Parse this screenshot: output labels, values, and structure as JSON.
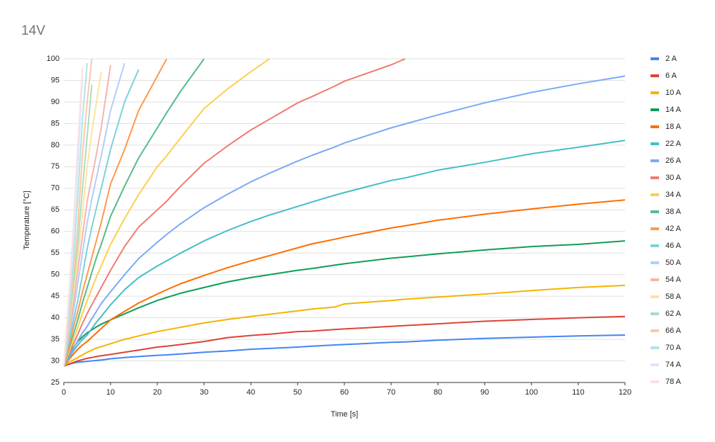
{
  "chart_data": {
    "type": "line",
    "title": "14V",
    "x_label": "Time [s]",
    "y_label": "Temperature [°C]",
    "x": [
      0,
      1,
      2,
      3,
      4,
      5,
      6,
      7,
      8,
      10,
      13,
      16,
      20,
      22,
      25,
      30,
      35,
      40,
      44,
      50,
      53,
      58,
      60,
      70,
      73,
      80,
      90,
      100,
      110,
      120
    ],
    "xlim": [
      0,
      120
    ],
    "xticks": [
      0,
      10,
      20,
      30,
      40,
      50,
      60,
      70,
      80,
      90,
      100,
      110,
      120
    ],
    "ylim": [
      25,
      100
    ],
    "yticks": [
      25,
      30,
      35,
      40,
      45,
      50,
      55,
      60,
      65,
      70,
      75,
      80,
      85,
      90,
      95,
      100
    ],
    "grid": true,
    "legend": "right",
    "series": [
      {
        "name": "2 A",
        "color": "#4285f4",
        "values": [
          28.8,
          29.2,
          29.5,
          29.7,
          29.8,
          29.9,
          30,
          30.1,
          30.2,
          30.5,
          30.8,
          31,
          31.3,
          31.4,
          31.6,
          32,
          32.3,
          32.7,
          32.9,
          33.2,
          33.4,
          33.7,
          33.8,
          34.3,
          34.4,
          34.8,
          35.2,
          35.5,
          35.8,
          36
        ]
      },
      {
        "name": "6 A",
        "color": "#db4437",
        "values": [
          28.8,
          29.2,
          29.6,
          30,
          30.3,
          30.6,
          30.8,
          31,
          31.2,
          31.5,
          32,
          32.5,
          33.2,
          33.4,
          33.8,
          34.5,
          35.4,
          35.9,
          36.2,
          36.8,
          36.9,
          37.3,
          37.4,
          38,
          38.2,
          38.6,
          39.2,
          39.6,
          40,
          40.3
        ]
      },
      {
        "name": "10 A",
        "color": "#f4b400",
        "values": [
          28.8,
          29.6,
          30.2,
          30.8,
          31.4,
          32,
          32.5,
          33,
          33.3,
          34,
          35,
          35.8,
          36.8,
          37.2,
          37.8,
          38.8,
          39.6,
          40.3,
          40.8,
          41.6,
          42,
          42.5,
          43.2,
          44,
          44.3,
          44.8,
          45.5,
          46.3,
          47,
          47.5
        ]
      },
      {
        "name": "14 A",
        "color": "#0f9d58",
        "values": [
          28.8,
          31,
          33,
          34.5,
          35.6,
          36.5,
          37.2,
          37.9,
          38.5,
          39.5,
          40.9,
          42.3,
          44,
          44.7,
          45.7,
          47,
          48.3,
          49.3,
          50,
          51,
          51.4,
          52.2,
          52.5,
          53.8,
          54.1,
          54.8,
          55.7,
          56.5,
          57,
          57.8
        ]
      },
      {
        "name": "18 A",
        "color": "#ff6d01",
        "values": [
          28.8,
          30.2,
          31.5,
          32.7,
          33.7,
          34.5,
          35.5,
          36.5,
          37.5,
          39.5,
          41.5,
          43.4,
          45.5,
          46.5,
          47.9,
          49.8,
          51.6,
          53.2,
          54.4,
          56.2,
          57.1,
          58.2,
          58.7,
          60.8,
          61.3,
          62.6,
          64,
          65.2,
          66.3,
          67.3
        ]
      },
      {
        "name": "22 A",
        "color": "#46bdc6",
        "values": [
          28.8,
          30.5,
          32.2,
          33.7,
          35,
          36,
          37.5,
          39,
          40.3,
          43,
          46.5,
          49.3,
          52,
          53.2,
          55,
          57.8,
          60.2,
          62.3,
          63.8,
          65.8,
          66.8,
          68.4,
          69,
          71.8,
          72.4,
          74.2,
          76,
          78,
          79.5,
          81.1
        ]
      },
      {
        "name": "26 A",
        "color": "#7baaf7",
        "values": [
          28.8,
          30.8,
          32.8,
          34.7,
          36.5,
          38,
          39.8,
          41.5,
          43.3,
          46,
          50,
          53.7,
          57.5,
          59.3,
          61.8,
          65.5,
          68.6,
          71.5,
          73.5,
          76.3,
          77.6,
          79.6,
          80.5,
          84,
          84.9,
          87,
          89.8,
          92.2,
          94.2,
          96
        ]
      },
      {
        "name": "30 A",
        "color": "#f07b72",
        "values": [
          28.8,
          31.3,
          33.8,
          36.2,
          38.7,
          41,
          43,
          45,
          47,
          51,
          56.5,
          61,
          65,
          67,
          70.5,
          75.8,
          79.8,
          83.5,
          86,
          89.8,
          91.2,
          93.7,
          94.8,
          98.6,
          100,
          null,
          null,
          null,
          null,
          null
        ]
      },
      {
        "name": "34 A",
        "color": "#fcd04f",
        "values": [
          28.8,
          31.8,
          34.8,
          37.8,
          41,
          44,
          46.8,
          49.5,
          52,
          57,
          63,
          68.5,
          75,
          77.5,
          81.7,
          88.5,
          93,
          97,
          100,
          null,
          null,
          null,
          null,
          null,
          null,
          null,
          null,
          null,
          null,
          null
        ]
      },
      {
        "name": "38 A",
        "color": "#57bb8a",
        "values": [
          28.8,
          32.5,
          36,
          39.5,
          43.5,
          47,
          50.5,
          54,
          57,
          63.5,
          70.5,
          77,
          84,
          87.5,
          92.5,
          100,
          null,
          null,
          null,
          null,
          null,
          null,
          null,
          null,
          null,
          null,
          null,
          null,
          null,
          null
        ]
      },
      {
        "name": "42 A",
        "color": "#ff994d",
        "values": [
          28.8,
          33,
          37.5,
          41.5,
          46,
          50,
          54,
          58,
          62,
          71,
          79,
          88,
          96,
          100,
          null,
          null,
          null,
          null,
          null,
          null,
          null,
          null,
          null,
          null,
          null,
          null,
          null,
          null,
          null,
          null
        ]
      },
      {
        "name": "46 A",
        "color": "#7ed1d7",
        "values": [
          28.8,
          34,
          39,
          44,
          50,
          56,
          61,
          65.5,
          70,
          79,
          90,
          97.5,
          null,
          null,
          null,
          null,
          null,
          null,
          null,
          null,
          null,
          null,
          null,
          null,
          null,
          null,
          null,
          null,
          null,
          null
        ]
      },
      {
        "name": "50 A",
        "color": "#b3cefb",
        "values": [
          28.8,
          35,
          41,
          48,
          55,
          62,
          67.5,
          72.5,
          77.5,
          88,
          99,
          null,
          null,
          null,
          null,
          null,
          null,
          null,
          null,
          null,
          null,
          null,
          null,
          null,
          null,
          null,
          null,
          null,
          null,
          null
        ]
      },
      {
        "name": "54 A",
        "color": "#f7b4ae",
        "values": [
          28.8,
          36,
          43,
          51,
          59,
          67,
          72.5,
          78,
          84,
          98.5,
          null,
          null,
          null,
          null,
          null,
          null,
          null,
          null,
          null,
          null,
          null,
          null,
          null,
          null,
          null,
          null,
          null,
          null,
          null,
          null
        ]
      },
      {
        "name": "58 A",
        "color": "#fde49b",
        "values": [
          28.8,
          37,
          45,
          54,
          64,
          75,
          83,
          90,
          97,
          null,
          null,
          null,
          null,
          null,
          null,
          null,
          null,
          null,
          null,
          null,
          null,
          null,
          null,
          null,
          null,
          null,
          null,
          null,
          null,
          null
        ]
      },
      {
        "name": "62 A",
        "color": "#abdcc4",
        "values": [
          28.8,
          38,
          47,
          57,
          70,
          82,
          94,
          null,
          null,
          null,
          null,
          null,
          null,
          null,
          null,
          null,
          null,
          null,
          null,
          null,
          null,
          null,
          null,
          null,
          null,
          null,
          null,
          null,
          null,
          null
        ]
      },
      {
        "name": "66 A",
        "color": "#ffc8a6",
        "values": [
          28.8,
          39,
          49,
          61,
          78,
          90,
          100,
          null,
          null,
          null,
          null,
          null,
          null,
          null,
          null,
          null,
          null,
          null,
          null,
          null,
          null,
          null,
          null,
          null,
          null,
          null,
          null,
          null,
          null,
          null
        ]
      },
      {
        "name": "70 A",
        "color": "#b1e3e7",
        "values": [
          28.8,
          40,
          52,
          68,
          86,
          99,
          null,
          null,
          null,
          null,
          null,
          null,
          null,
          null,
          null,
          null,
          null,
          null,
          null,
          null,
          null,
          null,
          null,
          null,
          null,
          null,
          null,
          null,
          null,
          null
        ]
      },
      {
        "name": "74 A",
        "color": "#d9e7fd",
        "values": [
          28.8,
          42,
          56,
          75,
          96,
          null,
          null,
          null,
          null,
          null,
          null,
          null,
          null,
          null,
          null,
          null,
          null,
          null,
          null,
          null,
          null,
          null,
          null,
          null,
          null,
          null,
          null,
          null,
          null,
          null
        ]
      },
      {
        "name": "78 A",
        "color": "#fbe1df",
        "values": [
          28.8,
          44,
          60,
          80,
          98,
          null,
          null,
          null,
          null,
          null,
          null,
          null,
          null,
          null,
          null,
          null,
          null,
          null,
          null,
          null,
          null,
          null,
          null,
          null,
          null,
          null,
          null,
          null,
          null,
          null
        ]
      }
    ]
  }
}
